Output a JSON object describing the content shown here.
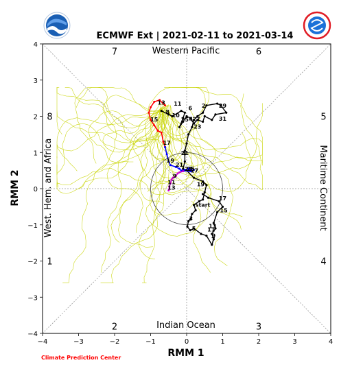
{
  "chart_data": {
    "type": "line",
    "title": "ECMWF Ext | 2021-02-11 to 2021-03-14",
    "xlabel": "RMM 1",
    "ylabel": "RMM 2",
    "xlim": [
      -4,
      4
    ],
    "ylim": [
      -4,
      4
    ],
    "xticks": [
      -4,
      -3,
      -2,
      -1,
      0,
      1,
      2,
      3,
      4
    ],
    "yticks": [
      -4,
      -3,
      -2,
      -1,
      0,
      1,
      2,
      3,
      4
    ],
    "xtick_labels": [
      "−4",
      "−3",
      "−2",
      "−1",
      "0",
      "1",
      "2",
      "3",
      "4"
    ],
    "ytick_labels": [
      "−4",
      "−3",
      "−2",
      "−1",
      "0",
      "1",
      "2",
      "3",
      "4"
    ],
    "grid": false,
    "region_labels": {
      "top": "Western Pacific",
      "bottom": "Indian Ocean",
      "left": "West. Hem. and Africa",
      "right": "Maritime Continent"
    },
    "phase_labels": [
      {
        "text": "1",
        "x": -3.8,
        "y": -2.0
      },
      {
        "text": "2",
        "x": -2.0,
        "y": -3.8
      },
      {
        "text": "3",
        "x": 2.0,
        "y": -3.8
      },
      {
        "text": "4",
        "x": 3.8,
        "y": -2.0
      },
      {
        "text": "5",
        "x": 3.8,
        "y": 2.0
      },
      {
        "text": "6",
        "x": 2.0,
        "y": 3.8
      },
      {
        "text": "7",
        "x": -2.0,
        "y": 3.8
      },
      {
        "text": "8",
        "x": -3.8,
        "y": 2.0
      }
    ],
    "observed": {
      "color": "#000000",
      "points": [
        [
          0.45,
          -0.15
        ],
        [
          0.6,
          -0.25
        ],
        [
          0.9,
          -0.35
        ],
        [
          1.0,
          -0.5
        ],
        [
          0.85,
          -0.65
        ],
        [
          0.75,
          -0.95
        ],
        [
          0.8,
          -1.1
        ],
        [
          0.7,
          -1.25
        ],
        [
          0.75,
          -1.4
        ],
        [
          0.7,
          -1.55
        ],
        [
          0.55,
          -1.3
        ],
        [
          0.4,
          -1.25
        ],
        [
          0.2,
          -1.1
        ],
        [
          0.1,
          -1.15
        ],
        [
          0.02,
          -1.05
        ],
        [
          0.05,
          -0.9
        ],
        [
          0.1,
          -0.85
        ],
        [
          0.15,
          -0.7
        ],
        [
          0.25,
          -0.6
        ],
        [
          0.2,
          -0.45
        ],
        [
          0.35,
          -0.35
        ],
        [
          0.45,
          -0.3
        ],
        [
          0.5,
          -0.1
        ],
        [
          0.55,
          0.1
        ],
        [
          0.45,
          0.2
        ],
        [
          0.2,
          0.3
        ],
        [
          0.0,
          0.5
        ],
        [
          -0.1,
          0.55
        ],
        [
          -0.05,
          0.75
        ],
        [
          -0.05,
          0.95
        ],
        [
          -0.05,
          1.05
        ],
        [
          0.0,
          1.25
        ],
        [
          0.05,
          1.5
        ],
        [
          0.15,
          1.7
        ],
        [
          0.2,
          1.9
        ],
        [
          0.3,
          2.0
        ],
        [
          0.45,
          2.1
        ],
        [
          0.55,
          2.3
        ],
        [
          0.85,
          2.35
        ],
        [
          0.95,
          2.3
        ],
        [
          1.1,
          2.1
        ],
        [
          0.8,
          2.05
        ],
        [
          0.7,
          1.9
        ],
        [
          0.5,
          2.0
        ],
        [
          0.45,
          1.85
        ],
        [
          0.3,
          1.9
        ],
        [
          0.2,
          1.8
        ],
        [
          0.1,
          1.95
        ],
        [
          0.0,
          2.0
        ],
        [
          -0.1,
          1.85
        ],
        [
          -0.2,
          1.7
        ],
        [
          -0.1,
          1.95
        ],
        [
          -0.05,
          2.1
        ],
        [
          -0.15,
          2.15
        ],
        [
          -0.4,
          2.0
        ],
        [
          -0.5,
          2.05
        ],
        [
          -0.7,
          2.15
        ]
      ],
      "labels": [
        {
          "text": "start",
          "x": 0.45,
          "y": -0.45
        },
        {
          "text": "17",
          "x": 1.0,
          "y": -0.27
        },
        {
          "text": "15",
          "x": 1.03,
          "y": -0.6
        },
        {
          "text": "13",
          "x": 0.72,
          "y": -1.03
        },
        {
          "text": "11",
          "x": 0.68,
          "y": -1.13
        },
        {
          "text": "9",
          "x": 0.75,
          "y": -1.3
        },
        {
          "text": "7",
          "x": 0.74,
          "y": -1.4
        },
        {
          "text": "5",
          "x": 0.2,
          "y": -1.1
        },
        {
          "text": "3",
          "x": 0.12,
          "y": -0.82
        },
        {
          "text": "19",
          "x": 0.39,
          "y": 0.12
        },
        {
          "text": "21",
          "x": -0.05,
          "y": 0.99
        },
        {
          "text": "23",
          "x": 0.3,
          "y": 1.72
        },
        {
          "text": "25",
          "x": -0.05,
          "y": 1.91
        },
        {
          "text": "27",
          "x": 0.27,
          "y": 1.92
        },
        {
          "text": "29",
          "x": 1.0,
          "y": 2.29
        },
        {
          "text": "31",
          "x": 1.0,
          "y": 1.93
        },
        {
          "text": "2",
          "x": 0.47,
          "y": 2.29
        },
        {
          "text": "4",
          "x": 0.12,
          "y": 1.92
        },
        {
          "text": "6",
          "x": 0.1,
          "y": 2.23
        },
        {
          "text": "8",
          "x": -0.53,
          "y": 2.12
        },
        {
          "text": "10",
          "x": -0.3,
          "y": 2.03
        }
      ]
    },
    "forecast_segments": [
      {
        "name": "",
        "color": "#ff0000",
        "points": [
          [
            -0.6,
            2.3
          ],
          [
            -0.75,
            2.45
          ],
          [
            -0.9,
            2.4
          ],
          [
            -1.0,
            2.25
          ],
          [
            -1.05,
            2.1
          ],
          [
            -1.0,
            1.9
          ],
          [
            -0.9,
            1.75
          ],
          [
            -0.8,
            1.6
          ],
          [
            -0.7,
            1.55
          ],
          [
            -0.65,
            1.3
          ],
          [
            -0.6,
            1.15
          ]
        ]
      },
      {
        "name": "",
        "color": "#0000ff",
        "points": [
          [
            -0.6,
            1.15
          ],
          [
            -0.55,
            0.95
          ],
          [
            -0.5,
            0.75
          ],
          [
            -0.45,
            0.65
          ],
          [
            -0.3,
            0.6
          ],
          [
            -0.2,
            0.55
          ],
          [
            -0.15,
            0.5
          ],
          [
            -0.05,
            0.52
          ],
          [
            0.05,
            0.55
          ],
          [
            0.15,
            0.5
          ],
          [
            0.2,
            0.52
          ],
          [
            0.1,
            0.48
          ],
          [
            0.0,
            0.5
          ],
          [
            -0.1,
            0.48
          ]
        ]
      },
      {
        "name": "",
        "color": "#cc00cc",
        "points": [
          [
            -0.1,
            0.48
          ],
          [
            -0.2,
            0.45
          ],
          [
            -0.25,
            0.42
          ],
          [
            -0.3,
            0.35
          ],
          [
            -0.38,
            0.3
          ],
          [
            -0.42,
            0.25
          ],
          [
            -0.45,
            0.15
          ],
          [
            -0.48,
            0.05
          ],
          [
            -0.5,
            -0.05
          ]
        ]
      }
    ],
    "forecast_labels": [
      {
        "text": "13",
        "x": -0.7,
        "y": 2.38,
        "color": "#000000"
      },
      {
        "text": "11",
        "x": -0.25,
        "y": 2.35,
        "color": "#000000"
      },
      {
        "text": "15",
        "x": -0.9,
        "y": 1.91,
        "color": "#000000"
      },
      {
        "text": "17",
        "x": -0.55,
        "y": 1.27,
        "color": "#000000"
      },
      {
        "text": "19",
        "x": -0.45,
        "y": 0.78,
        "color": "#000000"
      },
      {
        "text": "21",
        "x": -0.2,
        "y": 0.66,
        "color": "#000000"
      },
      {
        "text": "23",
        "x": 0.05,
        "y": 0.55,
        "color": "#000000"
      },
      {
        "text": "25",
        "x": 0.12,
        "y": 0.55,
        "color": "#000000"
      },
      {
        "text": "27",
        "x": 0.22,
        "y": 0.5,
        "color": "#000000"
      },
      {
        "text": "9",
        "x": -0.33,
        "y": 0.35,
        "color": "#000000"
      },
      {
        "text": "11",
        "x": -0.42,
        "y": 0.18,
        "color": "#000000"
      },
      {
        "text": "13",
        "x": -0.42,
        "y": 0.03,
        "color": "#000000"
      }
    ],
    "ensemble_color": "#c8d400",
    "ensemble_count": 42,
    "credit": "Climate Prediction Center",
    "credit_color": "#ff0000"
  },
  "logos": {
    "left": "noaa-logo",
    "right": "nws-logo"
  }
}
